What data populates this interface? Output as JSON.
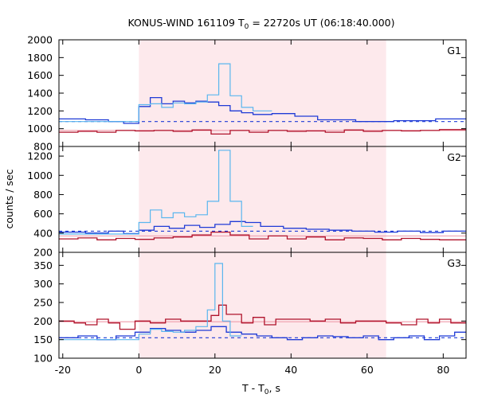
{
  "chart_data": {
    "type": "line",
    "title": "KONUS-WIND 161109 T",
    "title_sub": "0",
    "title_rest": " = 22720s UT (06:18:40.000)",
    "xlabel": "T - T",
    "xlabel_sub": "0",
    "xlabel_rest": ", s",
    "ylabel": "counts / sec",
    "xlim": [
      -21,
      86
    ],
    "xticks": [
      -20,
      0,
      20,
      40,
      60,
      80
    ],
    "shaded_interval": [
      0,
      65
    ],
    "colors": {
      "shade": "#fde9ec",
      "dark_blue": "#1f3bd6",
      "light_blue": "#5ab6ee",
      "dark_red": "#b0132b",
      "pink": "#f0a4b2"
    },
    "panels": [
      {
        "name": "G1",
        "ylim": [
          800,
          2000
        ],
        "yticks": [
          800,
          1000,
          1200,
          1400,
          1600,
          1800,
          2000
        ],
        "bg_blue_level": 1080,
        "bg_red_level": 980,
        "blue_thin": {
          "edges": [
            -21,
            0,
            3,
            6,
            9,
            12,
            15,
            18,
            21,
            24,
            27,
            30,
            35
          ],
          "values": [
            1080,
            1270,
            1280,
            1240,
            1290,
            1280,
            1300,
            1380,
            1730,
            1370,
            1240,
            1200
          ]
        },
        "blue": {
          "edges": [
            -21,
            -14,
            -8,
            -4,
            0,
            3,
            6,
            9,
            12,
            15,
            18,
            21,
            24,
            27,
            30,
            35,
            41,
            47,
            52,
            57,
            62,
            67,
            72,
            78,
            82,
            86
          ],
          "values": [
            1110,
            1100,
            1080,
            1060,
            1250,
            1350,
            1280,
            1310,
            1290,
            1310,
            1300,
            1260,
            1200,
            1180,
            1160,
            1170,
            1140,
            1100,
            1100,
            1080,
            1080,
            1090,
            1090,
            1110,
            1110
          ]
        },
        "red": {
          "edges": [
            -21,
            -16,
            -11,
            -6,
            -1,
            4,
            9,
            14,
            19,
            24,
            29,
            34,
            39,
            44,
            49,
            54,
            59,
            64,
            69,
            74,
            79,
            86
          ],
          "values": [
            960,
            970,
            960,
            980,
            975,
            980,
            970,
            985,
            940,
            980,
            960,
            980,
            970,
            975,
            960,
            985,
            970,
            980,
            975,
            980,
            990
          ]
        }
      },
      {
        "name": "G2",
        "ylim": [
          200,
          1300
        ],
        "yticks": [
          200,
          400,
          600,
          800,
          1000,
          1200
        ],
        "bg_blue_level": 420,
        "bg_red_level": 370,
        "blue_thin": {
          "edges": [
            -21,
            0,
            3,
            6,
            9,
            12,
            15,
            18,
            21,
            24,
            27,
            30
          ],
          "values": [
            390,
            510,
            640,
            560,
            610,
            570,
            590,
            730,
            1260,
            730,
            470
          ]
        },
        "blue": {
          "edges": [
            -21,
            -14,
            -8,
            -4,
            0,
            4,
            8,
            12,
            16,
            20,
            24,
            28,
            32,
            38,
            44,
            50,
            56,
            62,
            68,
            74,
            80,
            86
          ],
          "values": [
            410,
            400,
            420,
            395,
            430,
            470,
            450,
            480,
            460,
            490,
            520,
            510,
            470,
            450,
            440,
            430,
            420,
            410,
            420,
            405,
            420
          ]
        },
        "red": {
          "edges": [
            -21,
            -16,
            -11,
            -6,
            -1,
            4,
            9,
            14,
            19,
            24,
            29,
            34,
            39,
            44,
            49,
            54,
            59,
            64,
            69,
            74,
            79,
            86
          ],
          "values": [
            340,
            350,
            330,
            345,
            335,
            350,
            360,
            380,
            410,
            380,
            340,
            370,
            340,
            360,
            330,
            350,
            345,
            330,
            345,
            335,
            330
          ]
        }
      },
      {
        "name": "G3",
        "ylim": [
          100,
          385
        ],
        "yticks": [
          100,
          150,
          200,
          250,
          300,
          350
        ],
        "bg_blue_level": 155,
        "bg_red_level": 198,
        "blue_thin": {
          "edges": [
            -21,
            0,
            3,
            6,
            9,
            12,
            15,
            18,
            20,
            22,
            24,
            27
          ],
          "values": [
            150,
            165,
            178,
            172,
            170,
            175,
            185,
            230,
            355,
            200,
            160
          ]
        },
        "blue": {
          "edges": [
            -21,
            -16,
            -11,
            -6,
            -1,
            3,
            7,
            11,
            15,
            19,
            23,
            27,
            31,
            35,
            39,
            43,
            47,
            51,
            55,
            59,
            63,
            67,
            71,
            75,
            79,
            83,
            86
          ],
          "values": [
            155,
            160,
            150,
            160,
            170,
            180,
            175,
            170,
            175,
            185,
            170,
            165,
            160,
            155,
            150,
            155,
            160,
            158,
            155,
            160,
            150,
            155,
            160,
            150,
            160,
            170
          ]
        },
        "red": {
          "edges": [
            -21,
            -17,
            -14,
            -11,
            -8,
            -5,
            -1,
            3,
            7,
            11,
            15,
            19,
            21,
            23,
            27,
            30,
            33,
            36,
            40,
            45,
            49,
            53,
            57,
            61,
            65,
            69,
            73,
            76,
            79,
            82,
            86
          ],
          "values": [
            200,
            195,
            190,
            205,
            195,
            178,
            200,
            195,
            205,
            200,
            200,
            215,
            243,
            218,
            195,
            210,
            190,
            205,
            205,
            200,
            205,
            195,
            200,
            200,
            195,
            190,
            205,
            195,
            205,
            195
          ]
        }
      }
    ]
  }
}
